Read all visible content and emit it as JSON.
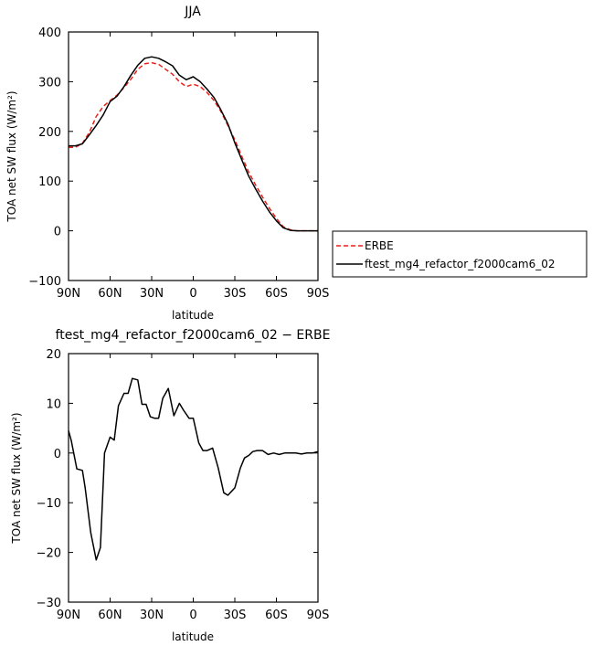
{
  "chart_data": [
    {
      "type": "line",
      "title": "JJA",
      "xlabel": "latitude",
      "ylabel": "TOA net SW flux (W/m²)",
      "x": [
        90,
        85,
        80,
        75,
        70,
        65,
        60,
        55,
        50,
        45,
        40,
        35,
        30,
        25,
        20,
        15,
        10,
        5,
        0,
        -5,
        -10,
        -15,
        -20,
        -25,
        -30,
        -35,
        -40,
        -45,
        -50,
        -55,
        -60,
        -65,
        -70,
        -75,
        -80,
        -85,
        -90
      ],
      "xticks": [
        90,
        60,
        30,
        0,
        -30,
        -60,
        -90
      ],
      "xticklabels": [
        "90N",
        "60N",
        "30N",
        "0",
        "30S",
        "60S",
        "90S"
      ],
      "xlim": [
        90,
        -90
      ],
      "ylim": [
        -100,
        400
      ],
      "yticks": [
        -100,
        0,
        100,
        200,
        300,
        400
      ],
      "series": [
        {
          "name": "ERBE",
          "color": "#e8211b",
          "dash": true,
          "values": [
            168,
            168,
            176,
            198,
            230,
            250,
            262,
            273,
            288,
            305,
            325,
            336,
            338,
            335,
            325,
            315,
            300,
            290,
            295,
            290,
            278,
            262,
            240,
            212,
            183,
            150,
            118,
            92,
            68,
            45,
            25,
            8,
            2,
            0,
            0,
            0,
            0
          ]
        },
        {
          "name": "ftest_mg4_refactor_f2000cam6_02",
          "color": "#000000",
          "dash": false,
          "values": [
            171,
            171,
            175,
            193,
            212,
            233,
            260,
            271,
            290,
            313,
            333,
            347,
            350,
            347,
            340,
            332,
            313,
            304,
            310,
            300,
            285,
            268,
            243,
            215,
            177,
            143,
            110,
            84,
            60,
            38,
            20,
            6,
            1,
            0,
            0,
            0,
            0
          ]
        }
      ],
      "legend": "right"
    },
    {
      "type": "line",
      "title": "ftest_mg4_refactor_f2000cam6_02 − ERBE",
      "xlabel": "latitude",
      "ylabel": "TOA net SW flux (W/m²)",
      "x": [
        90,
        88,
        84,
        80,
        78,
        74,
        70,
        67,
        64,
        60,
        57,
        54,
        50,
        47,
        44,
        40,
        37,
        34,
        31,
        28,
        25,
        22,
        18,
        14,
        10,
        7,
        3,
        0,
        -4,
        -7,
        -10,
        -14,
        -18,
        -22,
        -25,
        -30,
        -34,
        -37,
        -40,
        -43,
        -46,
        -50,
        -54,
        -58,
        -62,
        -66,
        -70,
        -74,
        -78,
        -82,
        -86,
        -90
      ],
      "xticks": [
        90,
        60,
        30,
        0,
        -30,
        -60,
        -90
      ],
      "xticklabels": [
        "90N",
        "60N",
        "30N",
        "0",
        "30S",
        "60S",
        "90S"
      ],
      "xlim": [
        90,
        -90
      ],
      "ylim": [
        -30,
        20
      ],
      "yticks": [
        -30,
        -20,
        -10,
        0,
        10,
        20
      ],
      "series": [
        {
          "name": "",
          "color": "#000000",
          "dash": false,
          "values": [
            4.5,
            2.5,
            -3.2,
            -3.5,
            -7,
            -16,
            -21.5,
            -19,
            0,
            3.2,
            2.6,
            9.5,
            12,
            12,
            15,
            14.7,
            9.8,
            9.8,
            7.3,
            7,
            7,
            11,
            13,
            7.5,
            10,
            8.6,
            7,
            7,
            2,
            0.5,
            0.5,
            1,
            -3,
            -8,
            -8.5,
            -7,
            -3,
            -1,
            -0.5,
            0.3,
            0.5,
            0.5,
            -0.3,
            0,
            -0.3,
            0,
            0,
            0,
            -0.2,
            0,
            0,
            0.3
          ]
        }
      ]
    }
  ]
}
